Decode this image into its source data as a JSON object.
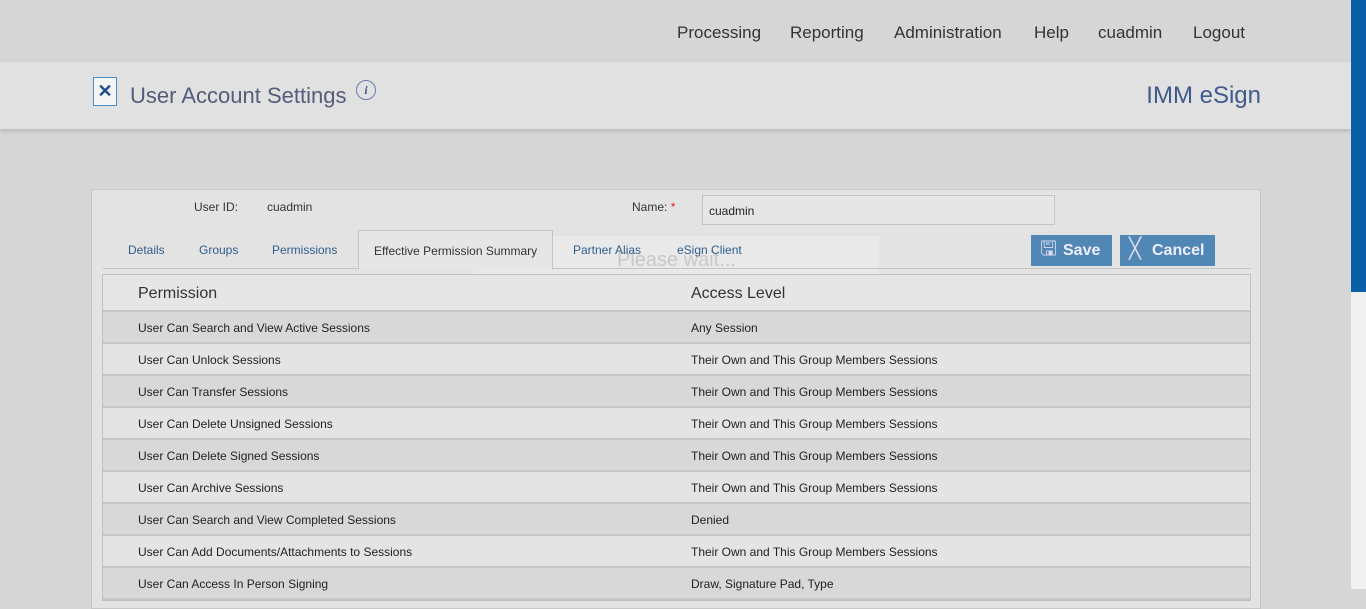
{
  "nav": [
    "Processing",
    "Reporting",
    "Administration",
    "Help",
    "cuadmin",
    "Logout"
  ],
  "header": {
    "title": "User Account Settings",
    "info": "i",
    "brand": "IMM eSign",
    "icon": "settings-document-icon"
  },
  "form": {
    "user_id_label": "User ID:",
    "user_id": "cuadmin",
    "name_label": "Name:",
    "required": "*",
    "name_value": "cuadmin"
  },
  "tabs": [
    "Details",
    "Groups",
    "Permissions",
    "Effective Permission Summary",
    "Partner Alias",
    "eSign Client"
  ],
  "active_tab": "Effective Permission Summary",
  "buttons": {
    "save": "Save",
    "cancel": "Cancel"
  },
  "overlay": "Please wait...",
  "table": {
    "headers": [
      "Permission",
      "Access Level"
    ],
    "rows": [
      [
        "User Can Search and View Active Sessions",
        "Any Session"
      ],
      [
        "User Can Unlock Sessions",
        "Their Own and This Group Members Sessions"
      ],
      [
        "User Can Transfer Sessions",
        "Their Own and This Group Members Sessions"
      ],
      [
        "User Can Delete Unsigned Sessions",
        "Their Own and This Group Members Sessions"
      ],
      [
        "User Can Delete Signed Sessions",
        "Their Own and This Group Members Sessions"
      ],
      [
        "User Can Archive Sessions",
        "Their Own and This Group Members Sessions"
      ],
      [
        "User Can Search and View Completed Sessions",
        "Denied"
      ],
      [
        "User Can Add Documents/Attachments to Sessions",
        "Their Own and This Group Members Sessions"
      ],
      [
        "User Can Access In Person Signing",
        "Draw, Signature Pad, Type"
      ]
    ]
  },
  "colors": {
    "accent": "#5087b4",
    "scrollbar": "#0a5fa8"
  }
}
